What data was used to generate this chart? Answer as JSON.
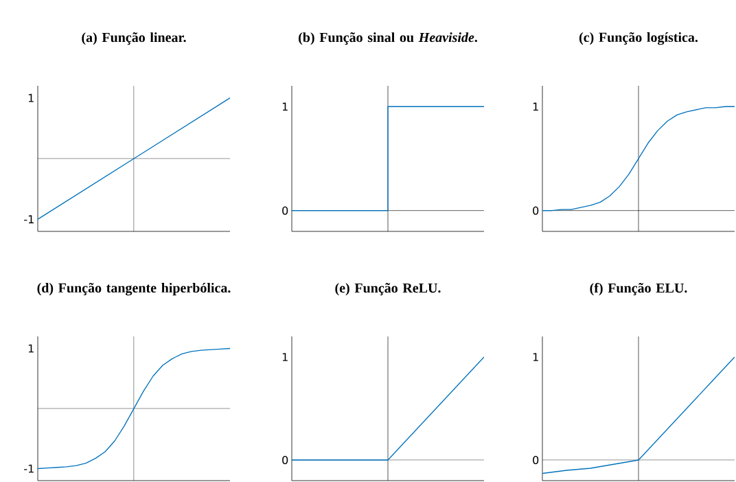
{
  "chart_data": [
    {
      "type": "line",
      "title": "(a) Função linear.",
      "categories": [
        null,
        null,
        null
      ],
      "values": [
        -1,
        0,
        1
      ],
      "color": "#0072bd",
      "ylim": [
        -1.2,
        1.2
      ],
      "yticks": [
        -1,
        1
      ],
      "tick_labels": "y",
      "ref_lines": [
        {
          "axis": "x"
        },
        {
          "axis": "y",
          "value": 0
        }
      ]
    },
    {
      "type": "step",
      "title": "(b) Função sinal ou *Heaviside*.",
      "categories": [
        null,
        null,
        null
      ],
      "values": [
        0,
        1,
        1
      ],
      "color": "#0072bd",
      "ylim": [
        -0.2,
        1.2
      ],
      "yticks": [
        0,
        1
      ],
      "tick_labels": "y",
      "ref_lines": [
        {
          "axis": "x"
        },
        {
          "axis": "y",
          "value": 0
        }
      ]
    },
    {
      "type": "line",
      "title": "(c) Função logística.",
      "categories": [
        null,
        null,
        null,
        null,
        null,
        null,
        null,
        null,
        null,
        null,
        null,
        null,
        null,
        null,
        null,
        null,
        null,
        null,
        null,
        null,
        null
      ],
      "values": [
        0,
        0,
        0.01,
        0.01,
        0.03,
        0.05,
        0.08,
        0.14,
        0.23,
        0.35,
        0.5,
        0.65,
        0.77,
        0.86,
        0.92,
        0.95,
        0.97,
        0.99,
        0.99,
        1,
        1
      ],
      "color": "#0072bd",
      "ylim": [
        -0.2,
        1.2
      ],
      "yticks": [
        0,
        1
      ],
      "tick_labels": "y",
      "ref_lines": [
        {
          "axis": "x"
        },
        {
          "axis": "y",
          "value": 0
        }
      ]
    },
    {
      "type": "line",
      "title": "(d) Função tangente hiperbólica.",
      "categories": [
        null,
        null,
        null,
        null,
        null,
        null,
        null,
        null,
        null,
        null,
        null,
        null,
        null,
        null,
        null,
        null,
        null,
        null,
        null,
        null,
        null
      ],
      "values": [
        -1,
        -0.99,
        -0.98,
        -0.97,
        -0.95,
        -0.91,
        -0.83,
        -0.72,
        -0.54,
        -0.29,
        0,
        0.29,
        0.54,
        0.72,
        0.83,
        0.91,
        0.95,
        0.97,
        0.98,
        0.99,
        1
      ],
      "color": "#0072bd",
      "ylim": [
        -1.2,
        1.2
      ],
      "yticks": [
        -1,
        1
      ],
      "tick_labels": "y",
      "ref_lines": [
        {
          "axis": "x"
        },
        {
          "axis": "y",
          "value": 0
        }
      ]
    },
    {
      "type": "line",
      "title": "(e) Função ReLU.",
      "categories": [
        null,
        null,
        null
      ],
      "values": [
        0,
        0,
        1
      ],
      "color": "#0072bd",
      "ylim": [
        -0.2,
        1.2
      ],
      "yticks": [
        0,
        1
      ],
      "tick_labels": "y",
      "ref_lines": [
        {
          "axis": "x"
        },
        {
          "axis": "y",
          "value": 0
        }
      ]
    },
    {
      "type": "line",
      "title": "(f) Função ELU.",
      "categories": [
        null,
        null,
        null,
        null,
        null,
        null,
        null,
        null,
        null
      ],
      "values": [
        -0.13,
        -0.1,
        -0.08,
        -0.04,
        0,
        0.25,
        0.5,
        0.75,
        1
      ],
      "color": "#0072bd",
      "ylim": [
        -0.2,
        1.2
      ],
      "yticks": [
        0,
        1
      ],
      "tick_labels": "y",
      "ref_lines": [
        {
          "axis": "x"
        },
        {
          "axis": "y",
          "value": 0
        }
      ]
    }
  ]
}
